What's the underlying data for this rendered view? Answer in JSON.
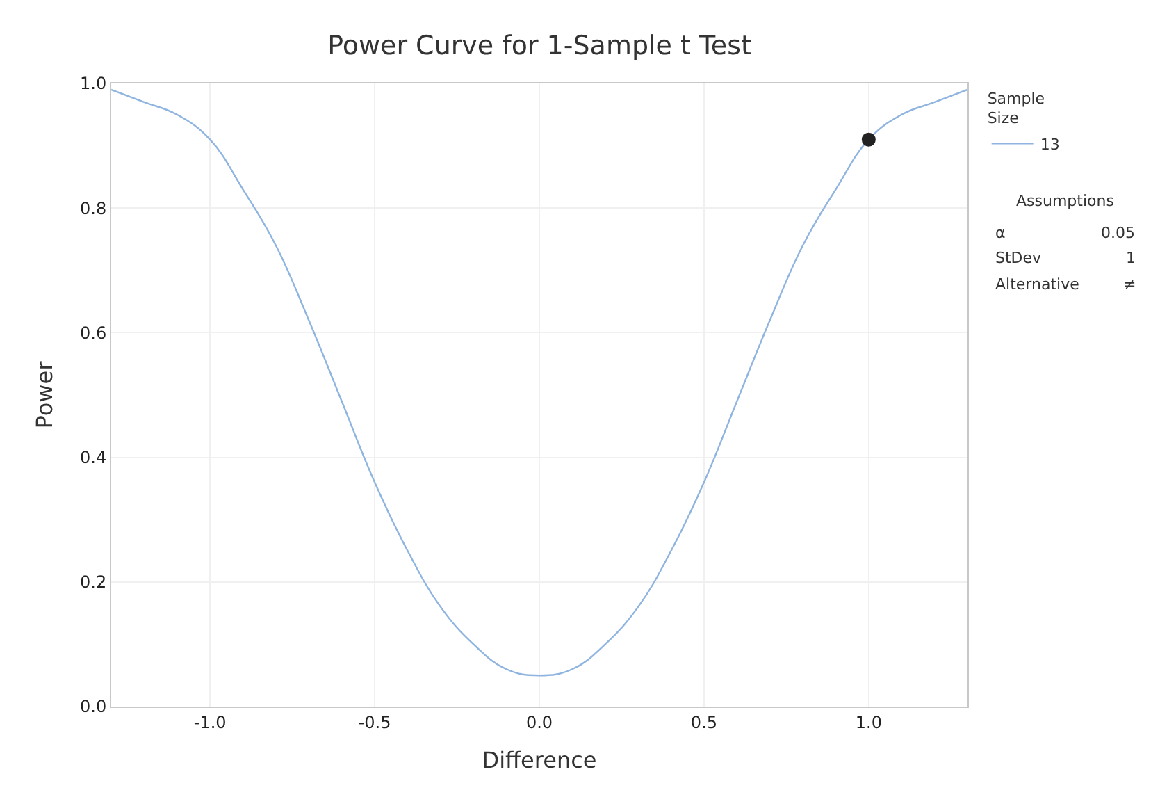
{
  "chart_data": {
    "type": "line",
    "title": "Power Curve for 1-Sample t Test",
    "xlabel": "Difference",
    "ylabel": "Power",
    "legend_title": "Sample Size",
    "x": [
      -1.3,
      -1.2,
      -1.1,
      -1.0,
      -0.9,
      -0.8,
      -0.7,
      -0.6,
      -0.5,
      -0.4,
      -0.3,
      -0.2,
      -0.1,
      0.0,
      0.1,
      0.2,
      0.3,
      0.4,
      0.5,
      0.6,
      0.7,
      0.8,
      0.9,
      1.0,
      1.1,
      1.2,
      1.3
    ],
    "series": [
      {
        "name": "13",
        "color": "#8fb4e0",
        "marker": "none",
        "values": [
          0.99,
          0.97,
          0.95,
          0.91,
          0.83,
          0.74,
          0.62,
          0.49,
          0.36,
          0.25,
          0.16,
          0.1,
          0.06,
          0.05,
          0.06,
          0.1,
          0.16,
          0.25,
          0.36,
          0.49,
          0.62,
          0.74,
          0.83,
          0.91,
          0.95,
          0.97,
          0.99
        ]
      },
      {
        "type": "scatter",
        "color": "#222222",
        "marker": "circle",
        "x": [
          1.0
        ],
        "values": [
          0.91
        ]
      }
    ],
    "annotations": [
      "Assumptions",
      "α",
      "0.05",
      "StDev",
      "1",
      "Alternative",
      "≠"
    ],
    "xlim": [
      -1.3,
      1.3
    ],
    "xticks": [
      {
        "value": -1.0,
        "label": "-1.0"
      },
      {
        "value": -0.5,
        "label": "-0.5"
      },
      {
        "value": 0.0,
        "label": "0.0"
      },
      {
        "value": 0.5,
        "label": "0.5"
      },
      {
        "value": 1.0,
        "label": "1.0"
      }
    ],
    "ylim": [
      0,
      1
    ],
    "yticks": [
      {
        "value": 0,
        "label": "0.0"
      },
      {
        "value": 0.2,
        "label": "0.2"
      },
      {
        "value": 0.4,
        "label": "0.4"
      },
      {
        "value": 0.6,
        "label": "0.6"
      },
      {
        "value": 0.8,
        "label": "0.8"
      },
      {
        "value": 1,
        "label": "1.0"
      }
    ],
    "grid": true,
    "legend": "top right"
  }
}
